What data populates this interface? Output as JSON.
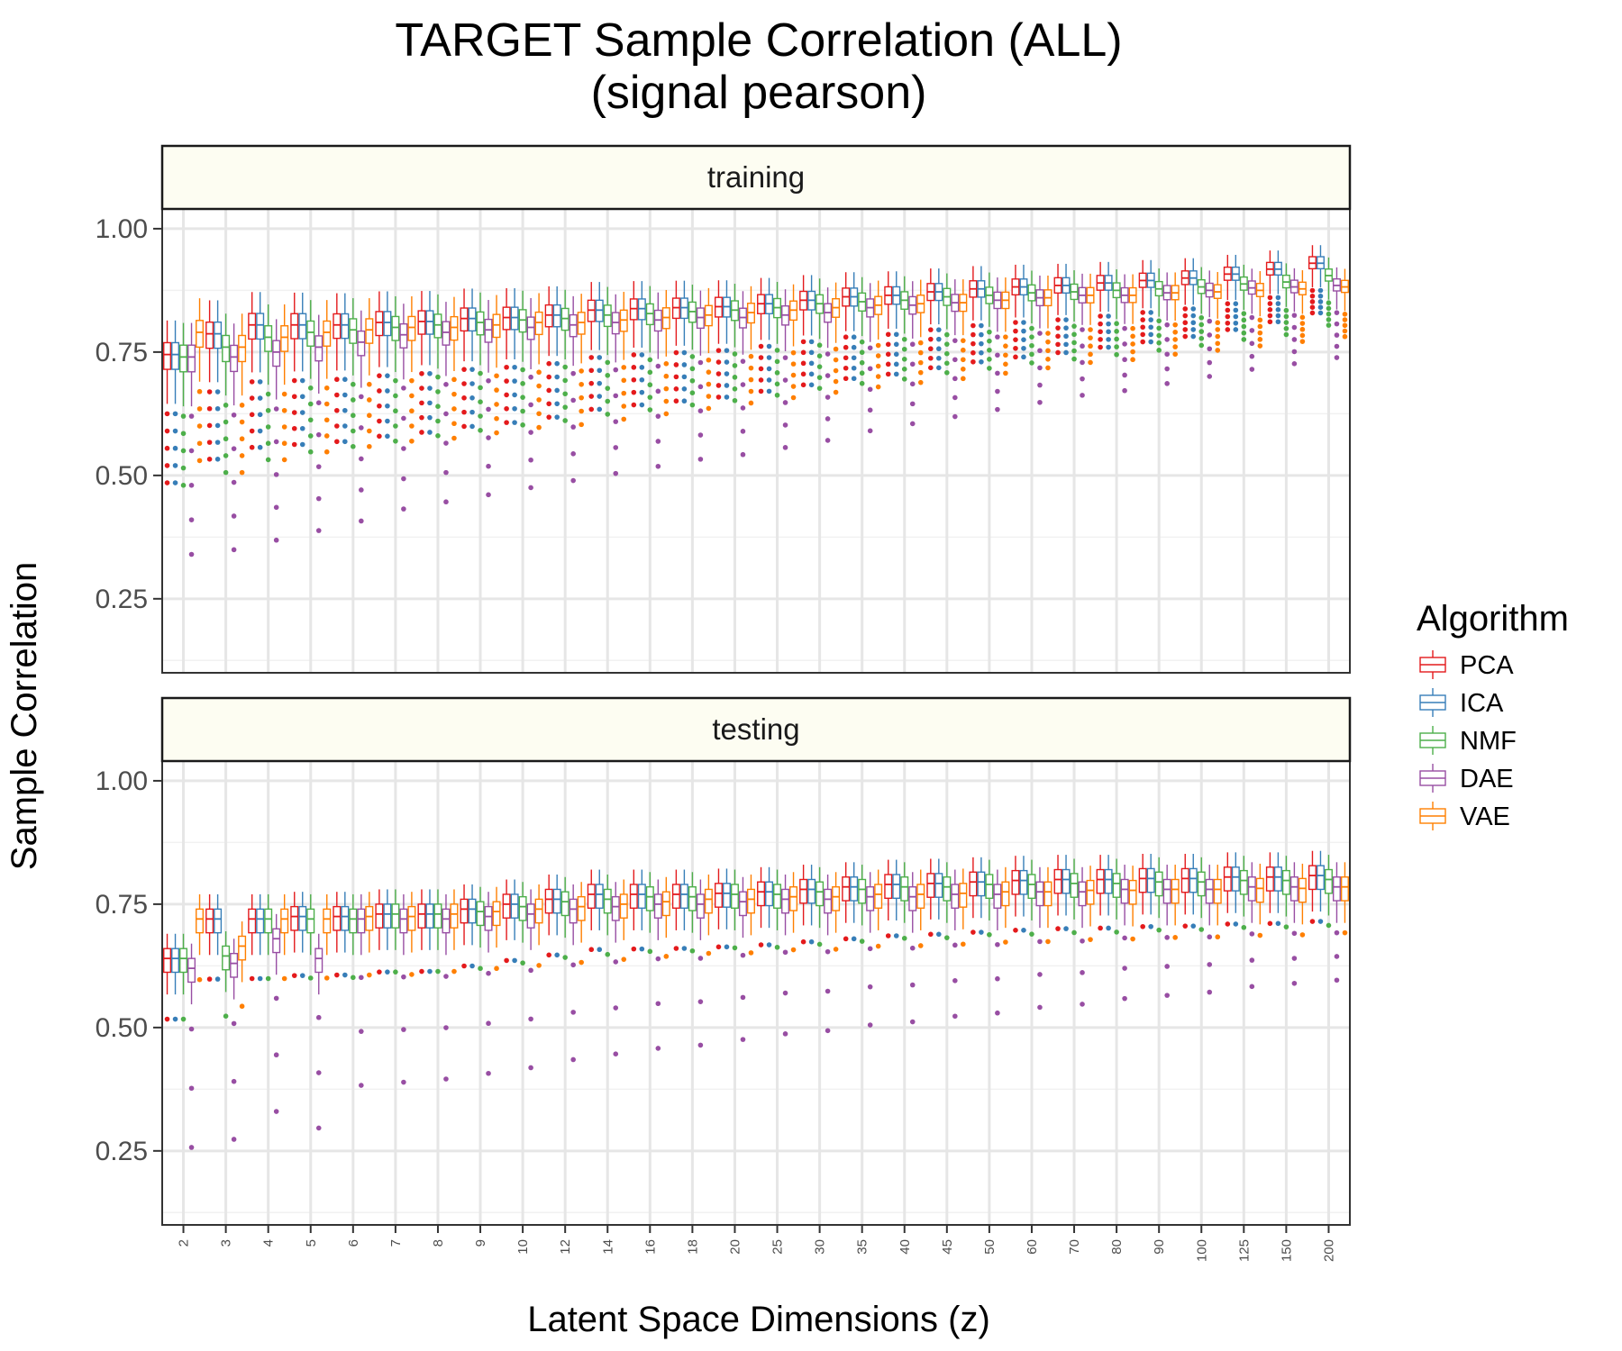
{
  "chart_data": {
    "type": "boxplot",
    "title": "TARGET Sample Correlation (ALL)",
    "subtitle": "(signal pearson)",
    "xlabel": "Latent Space Dimensions (z)",
    "ylabel": "Sample Correlation",
    "ylim": [
      0.1,
      1.04
    ],
    "yticks": [
      "0.25",
      "0.50",
      "0.75",
      "1.00"
    ],
    "grid": true,
    "legend": {
      "title": "Algorithm",
      "position": "right",
      "items": [
        {
          "name": "PCA",
          "color": "#e41a1c"
        },
        {
          "name": "ICA",
          "color": "#377eb8"
        },
        {
          "name": "NMF",
          "color": "#4daf4a"
        },
        {
          "name": "DAE",
          "color": "#984ea3"
        },
        {
          "name": "VAE",
          "color": "#ff7f00"
        }
      ]
    },
    "categories": [
      "2",
      "3",
      "4",
      "5",
      "6",
      "7",
      "8",
      "9",
      "10",
      "12",
      "14",
      "16",
      "18",
      "20",
      "25",
      "30",
      "35",
      "40",
      "45",
      "50",
      "60",
      "70",
      "80",
      "90",
      "100",
      "125",
      "150",
      "200"
    ],
    "panels": [
      {
        "label": "training",
        "series": [
          {
            "name": "PCA",
            "median": [
              0.745,
              0.787,
              0.805,
              0.805,
              0.805,
              0.81,
              0.812,
              0.818,
              0.82,
              0.825,
              0.835,
              0.838,
              0.84,
              0.842,
              0.848,
              0.855,
              0.862,
              0.865,
              0.872,
              0.878,
              0.882,
              0.885,
              0.89,
              0.895,
              0.9,
              0.908,
              0.918,
              0.93
            ]
          },
          {
            "name": "ICA",
            "median": [
              0.745,
              0.787,
              0.805,
              0.805,
              0.805,
              0.81,
              0.812,
              0.818,
              0.82,
              0.825,
              0.835,
              0.838,
              0.84,
              0.842,
              0.848,
              0.855,
              0.862,
              0.865,
              0.872,
              0.878,
              0.882,
              0.885,
              0.89,
              0.895,
              0.9,
              0.908,
              0.918,
              0.93
            ]
          },
          {
            "name": "NMF",
            "median": [
              0.74,
              0.76,
              0.78,
              0.79,
              0.795,
              0.8,
              0.805,
              0.81,
              0.815,
              0.818,
              0.825,
              0.828,
              0.832,
              0.835,
              0.84,
              0.848,
              0.852,
              0.855,
              0.862,
              0.865,
              0.87,
              0.872,
              0.875,
              0.878,
              0.882,
              0.888,
              0.892,
              0.905
            ]
          },
          {
            "name": "DAE",
            "median": [
              0.74,
              0.74,
              0.75,
              0.76,
              0.77,
              0.785,
              0.79,
              0.795,
              0.8,
              0.805,
              0.81,
              0.815,
              0.82,
              0.82,
              0.825,
              0.83,
              0.84,
              0.845,
              0.85,
              0.855,
              0.86,
              0.865,
              0.865,
              0.87,
              0.875,
              0.88,
              0.882,
              0.885
            ]
          },
          {
            "name": "VAE",
            "median": [
              0.79,
              0.76,
              0.78,
              0.79,
              0.795,
              0.8,
              0.8,
              0.805,
              0.81,
              0.81,
              0.815,
              0.82,
              0.825,
              0.83,
              0.835,
              0.84,
              0.845,
              0.848,
              0.85,
              0.855,
              0.86,
              0.865,
              0.865,
              0.87,
              0.872,
              0.875,
              0.878,
              0.882
            ]
          }
        ]
      },
      {
        "label": "testing",
        "series": [
          {
            "name": "PCA",
            "median": [
              0.64,
              0.72,
              0.72,
              0.725,
              0.725,
              0.73,
              0.73,
              0.74,
              0.75,
              0.76,
              0.77,
              0.77,
              0.77,
              0.772,
              0.775,
              0.78,
              0.785,
              0.79,
              0.792,
              0.795,
              0.798,
              0.8,
              0.8,
              0.802,
              0.802,
              0.805,
              0.805,
              0.808
            ]
          },
          {
            "name": "ICA",
            "median": [
              0.64,
              0.72,
              0.72,
              0.725,
              0.725,
              0.73,
              0.73,
              0.74,
              0.75,
              0.76,
              0.77,
              0.77,
              0.77,
              0.772,
              0.775,
              0.78,
              0.785,
              0.79,
              0.792,
              0.795,
              0.798,
              0.8,
              0.8,
              0.802,
              0.802,
              0.805,
              0.805,
              0.808
            ]
          },
          {
            "name": "NMF",
            "median": [
              0.64,
              0.645,
              0.72,
              0.72,
              0.72,
              0.73,
              0.73,
              0.735,
              0.745,
              0.755,
              0.76,
              0.765,
              0.765,
              0.77,
              0.77,
              0.775,
              0.78,
              0.785,
              0.785,
              0.79,
              0.79,
              0.792,
              0.792,
              0.795,
              0.795,
              0.798,
              0.798,
              0.8
            ]
          },
          {
            "name": "DAE",
            "median": [
              0.62,
              0.63,
              0.68,
              0.64,
              0.72,
              0.72,
              0.72,
              0.725,
              0.73,
              0.74,
              0.745,
              0.75,
              0.75,
              0.755,
              0.76,
              0.76,
              0.765,
              0.765,
              0.77,
              0.77,
              0.775,
              0.775,
              0.78,
              0.78,
              0.78,
              0.785,
              0.785,
              0.785
            ]
          },
          {
            "name": "VAE",
            "median": [
              0.72,
              0.665,
              0.72,
              0.72,
              0.725,
              0.725,
              0.73,
              0.735,
              0.74,
              0.745,
              0.75,
              0.755,
              0.76,
              0.76,
              0.765,
              0.765,
              0.77,
              0.77,
              0.772,
              0.775,
              0.775,
              0.778,
              0.778,
              0.78,
              0.78,
              0.782,
              0.782,
              0.785
            ]
          }
        ]
      }
    ]
  }
}
